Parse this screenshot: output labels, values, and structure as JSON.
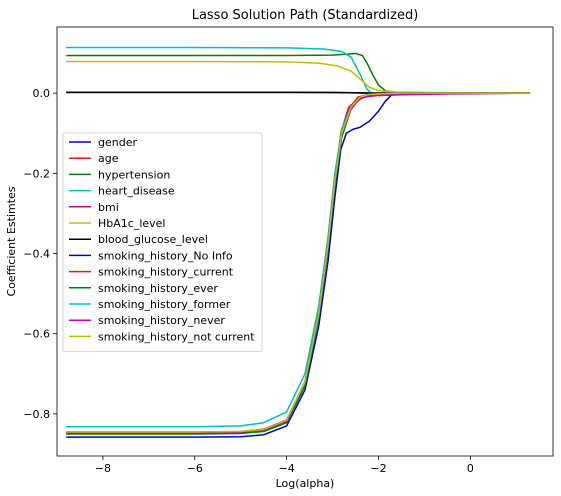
{
  "chart_data": {
    "type": "line",
    "title": "Lasso Solution Path (Standardized)",
    "xlabel": "Log(alpha)",
    "ylabel": "Coefficient Estimtes",
    "xlim": [
      -9.0,
      1.8
    ],
    "ylim": [
      -0.905,
      0.165
    ],
    "xticks": [
      -8,
      -6,
      -4,
      -2,
      0
    ],
    "yticks": [
      -0.8,
      -0.6,
      -0.4,
      -0.2,
      0.0
    ],
    "xtick_labels": [
      "−8",
      "−6",
      "−4",
      "−2",
      "0"
    ],
    "ytick_labels": [
      "−0.8",
      "−0.6",
      "−0.4",
      "−0.2",
      "0.0"
    ],
    "grid": false,
    "legend_position": "center-left",
    "series": [
      {
        "name": "gender",
        "color": "#0000cc",
        "values": [
          [
            -8.8,
            0.002
          ],
          [
            -6,
            0.002
          ],
          [
            -4,
            0.002
          ],
          [
            -3,
            0.0015
          ],
          [
            -2.6,
            0.001
          ],
          [
            -2.3,
            0.0
          ],
          [
            1.3,
            0.0
          ]
        ]
      },
      {
        "name": "age",
        "color": "#e41a1c",
        "values": [
          [
            -8.8,
            -0.848
          ],
          [
            -6,
            -0.848
          ],
          [
            -5,
            -0.847
          ],
          [
            -4.5,
            -0.842
          ],
          [
            -4,
            -0.82
          ],
          [
            -3.6,
            -0.72
          ],
          [
            -3.3,
            -0.55
          ],
          [
            -3.1,
            -0.38
          ],
          [
            -2.95,
            -0.22
          ],
          [
            -2.8,
            -0.09
          ],
          [
            -2.6,
            -0.035
          ],
          [
            -2.4,
            -0.015
          ],
          [
            -2.2,
            -0.005
          ],
          [
            -1.9,
            -0.002
          ],
          [
            -1.0,
            -0.001
          ],
          [
            1.3,
            0.0
          ]
        ]
      },
      {
        "name": "hypertension",
        "color": "#008000",
        "values": [
          [
            -8.8,
            0.094
          ],
          [
            -6,
            0.094
          ],
          [
            -4,
            0.094
          ],
          [
            -3,
            0.095
          ],
          [
            -2.7,
            0.097
          ],
          [
            -2.5,
            0.099
          ],
          [
            -2.35,
            0.094
          ],
          [
            -2.25,
            0.075
          ],
          [
            -2.12,
            0.045
          ],
          [
            -2.0,
            0.02
          ],
          [
            -1.85,
            0.006
          ],
          [
            -1.6,
            0.001
          ],
          [
            1.3,
            0.0
          ]
        ]
      },
      {
        "name": "heart_disease",
        "color": "#00bfbf",
        "values": [
          [
            -8.8,
            0.114
          ],
          [
            -6,
            0.114
          ],
          [
            -4,
            0.113
          ],
          [
            -3.2,
            0.11
          ],
          [
            -2.8,
            0.104
          ],
          [
            -2.6,
            0.09
          ],
          [
            -2.48,
            0.065
          ],
          [
            -2.35,
            0.035
          ],
          [
            -2.25,
            0.01
          ],
          [
            -2.15,
            0.0
          ],
          [
            1.3,
            0.0
          ]
        ]
      },
      {
        "name": "bmi",
        "color": "#bf00bf",
        "values": [
          [
            -8.8,
            -0.845
          ],
          [
            -6,
            -0.845
          ],
          [
            -5,
            -0.844
          ],
          [
            -4.5,
            -0.838
          ],
          [
            -4,
            -0.815
          ],
          [
            -3.6,
            -0.72
          ],
          [
            -3.3,
            -0.55
          ],
          [
            -3.1,
            -0.38
          ],
          [
            -2.95,
            -0.22
          ],
          [
            -2.82,
            -0.1
          ],
          [
            -2.65,
            -0.035
          ],
          [
            -2.4,
            -0.01
          ],
          [
            -2.0,
            -0.006
          ],
          [
            -1.5,
            -0.004
          ],
          [
            -0.5,
            -0.002
          ],
          [
            1.3,
            0.0
          ]
        ]
      },
      {
        "name": "HbA1c_level",
        "color": "#bfbf00",
        "values": [
          [
            -8.8,
            0.079
          ],
          [
            -6,
            0.079
          ],
          [
            -4,
            0.078
          ],
          [
            -3.3,
            0.075
          ],
          [
            -2.9,
            0.068
          ],
          [
            -2.6,
            0.055
          ],
          [
            -2.4,
            0.035
          ],
          [
            -2.2,
            0.015
          ],
          [
            -2.0,
            0.006
          ],
          [
            -1.6,
            0.003
          ],
          [
            -1.0,
            0.002
          ],
          [
            -0.5,
            0.0
          ],
          [
            1.3,
            0.0
          ]
        ]
      },
      {
        "name": "blood_glucose_level",
        "color": "#000000",
        "values": [
          [
            -8.8,
            0.002
          ],
          [
            -6,
            0.002
          ],
          [
            -4,
            0.002
          ],
          [
            -3,
            0.0015
          ],
          [
            -2.5,
            0.001
          ],
          [
            -2.0,
            0.0
          ],
          [
            1.3,
            0.0
          ]
        ]
      },
      {
        "name": "smoking_history_No Info",
        "color": "#0000cc",
        "values": [
          [
            -8.8,
            -0.858
          ],
          [
            -6,
            -0.858
          ],
          [
            -5,
            -0.857
          ],
          [
            -4.5,
            -0.852
          ],
          [
            -4,
            -0.83
          ],
          [
            -3.6,
            -0.74
          ],
          [
            -3.3,
            -0.58
          ],
          [
            -3.1,
            -0.42
          ],
          [
            -2.95,
            -0.26
          ],
          [
            -2.82,
            -0.14
          ],
          [
            -2.7,
            -0.1
          ],
          [
            -2.55,
            -0.09
          ],
          [
            -2.4,
            -0.085
          ],
          [
            -2.2,
            -0.07
          ],
          [
            -2.0,
            -0.045
          ],
          [
            -1.85,
            -0.02
          ],
          [
            -1.72,
            -0.005
          ],
          [
            -1.5,
            0.0
          ],
          [
            1.3,
            0.0
          ]
        ]
      },
      {
        "name": "smoking_history_current",
        "color": "#e41a1c",
        "values": [
          [
            -8.8,
            -0.847
          ],
          [
            -6,
            -0.847
          ],
          [
            -5,
            -0.846
          ],
          [
            -4.5,
            -0.84
          ],
          [
            -4,
            -0.818
          ],
          [
            -3.6,
            -0.72
          ],
          [
            -3.3,
            -0.55
          ],
          [
            -3.1,
            -0.38
          ],
          [
            -2.95,
            -0.22
          ],
          [
            -2.8,
            -0.1
          ],
          [
            -2.65,
            -0.04
          ],
          [
            -2.45,
            -0.01
          ],
          [
            -2.2,
            -0.003
          ],
          [
            -1.5,
            0.0
          ],
          [
            1.3,
            0.0
          ]
        ]
      },
      {
        "name": "smoking_history_ever",
        "color": "#008000",
        "values": [
          [
            -8.8,
            -0.85
          ],
          [
            -6,
            -0.85
          ],
          [
            -5,
            -0.849
          ],
          [
            -4.5,
            -0.844
          ],
          [
            -4,
            -0.822
          ],
          [
            -3.6,
            -0.73
          ],
          [
            -3.3,
            -0.56
          ],
          [
            -3.1,
            -0.39
          ],
          [
            -2.95,
            -0.23
          ],
          [
            -2.8,
            -0.11
          ],
          [
            -2.6,
            -0.04
          ],
          [
            -2.4,
            -0.012
          ],
          [
            -2.2,
            -0.003
          ],
          [
            -1.5,
            0.0
          ],
          [
            1.3,
            0.0
          ]
        ]
      },
      {
        "name": "smoking_history_former",
        "color": "#00bfbf",
        "values": [
          [
            -8.8,
            -0.832
          ],
          [
            -6,
            -0.832
          ],
          [
            -5,
            -0.83
          ],
          [
            -4.5,
            -0.822
          ],
          [
            -4,
            -0.795
          ],
          [
            -3.6,
            -0.7
          ],
          [
            -3.3,
            -0.53
          ],
          [
            -3.1,
            -0.36
          ],
          [
            -2.95,
            -0.2
          ],
          [
            -2.8,
            -0.09
          ],
          [
            -2.6,
            -0.035
          ],
          [
            -2.4,
            -0.01
          ],
          [
            -2.2,
            -0.003
          ],
          [
            -1.5,
            0.0
          ],
          [
            1.3,
            0.0
          ]
        ]
      },
      {
        "name": "smoking_history_never",
        "color": "#bf00bf",
        "values": [
          [
            -8.8,
            -0.846
          ],
          [
            -6,
            -0.846
          ],
          [
            -5,
            -0.845
          ],
          [
            -4.5,
            -0.84
          ],
          [
            -4,
            -0.818
          ],
          [
            -3.6,
            -0.72
          ],
          [
            -3.3,
            -0.55
          ],
          [
            -3.1,
            -0.38
          ],
          [
            -2.95,
            -0.22
          ],
          [
            -2.8,
            -0.1
          ],
          [
            -2.6,
            -0.04
          ],
          [
            -2.4,
            -0.012
          ],
          [
            -2.1,
            -0.006
          ],
          [
            -1.5,
            -0.003
          ],
          [
            -0.5,
            -0.001
          ],
          [
            1.3,
            0.0
          ]
        ]
      },
      {
        "name": "smoking_history_not current",
        "color": "#bfbf00",
        "values": [
          [
            -8.8,
            -0.845
          ],
          [
            -6,
            -0.845
          ],
          [
            -5,
            -0.844
          ],
          [
            -4.5,
            -0.839
          ],
          [
            -4,
            -0.816
          ],
          [
            -3.6,
            -0.72
          ],
          [
            -3.3,
            -0.55
          ],
          [
            -3.1,
            -0.38
          ],
          [
            -2.95,
            -0.22
          ],
          [
            -2.8,
            -0.1
          ],
          [
            -2.6,
            -0.035
          ],
          [
            -2.4,
            -0.01
          ],
          [
            -2.2,
            -0.003
          ],
          [
            -1.5,
            0.0
          ],
          [
            1.3,
            0.0
          ]
        ]
      }
    ]
  }
}
